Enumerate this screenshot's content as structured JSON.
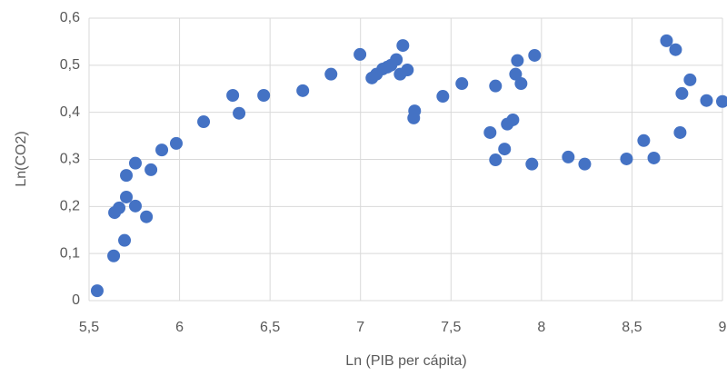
{
  "chart_data": {
    "type": "scatter",
    "x_label": "Ln (PIB per cápita)",
    "y_label": "Ln(CO2)",
    "color": "#4472c4",
    "grid": true,
    "xlim": [
      5.5,
      9
    ],
    "ylim": [
      0,
      0.6
    ],
    "xticks": [
      {
        "value": 5.5,
        "label": "5,5"
      },
      6,
      {
        "value": 6.5,
        "label": "6,5"
      },
      7,
      {
        "value": 7.5,
        "label": "7,5"
      },
      8,
      {
        "value": 8.5,
        "label": "8,5"
      },
      9
    ],
    "yticks": [
      0,
      {
        "value": 0.1,
        "label": "0,1"
      },
      {
        "value": 0.2,
        "label": "0,2"
      },
      {
        "value": 0.3,
        "label": "0,3"
      },
      {
        "value": 0.4,
        "label": "0,4"
      },
      {
        "value": 0.5,
        "label": "0,5"
      },
      {
        "value": 0.6,
        "label": "0,6"
      }
    ],
    "x": [
      5.545,
      5.636,
      5.696,
      5.641,
      5.666,
      5.706,
      5.706,
      5.756,
      5.756,
      5.817,
      5.842,
      5.902,
      5.982,
      6.133,
      6.294,
      6.329,
      6.465,
      6.681,
      6.837,
      6.997,
      7.063,
      7.088,
      7.123,
      7.148,
      7.168,
      7.198,
      7.219,
      7.234,
      7.259,
      7.299,
      7.294,
      7.455,
      7.56,
      7.716,
      7.746,
      7.746,
      7.796,
      7.811,
      7.842,
      7.857,
      7.867,
      7.887,
      7.947,
      7.962,
      8.148,
      8.239,
      8.47,
      8.565,
      8.621,
      8.691,
      8.741,
      8.766,
      8.776,
      8.821,
      8.912,
      9.0
    ],
    "values": [
      0.021,
      0.095,
      0.128,
      0.187,
      0.197,
      0.22,
      0.266,
      0.201,
      0.292,
      0.178,
      0.278,
      0.32,
      0.334,
      0.38,
      0.436,
      0.398,
      0.436,
      0.446,
      0.481,
      0.523,
      0.473,
      0.481,
      0.492,
      0.496,
      0.5,
      0.512,
      0.481,
      0.542,
      0.49,
      0.403,
      0.388,
      0.434,
      0.461,
      0.357,
      0.456,
      0.299,
      0.322,
      0.375,
      0.384,
      0.481,
      0.51,
      0.461,
      0.29,
      0.521,
      0.305,
      0.29,
      0.301,
      0.34,
      0.303,
      0.552,
      0.533,
      0.357,
      0.44,
      0.469,
      0.425,
      0.423
    ]
  }
}
